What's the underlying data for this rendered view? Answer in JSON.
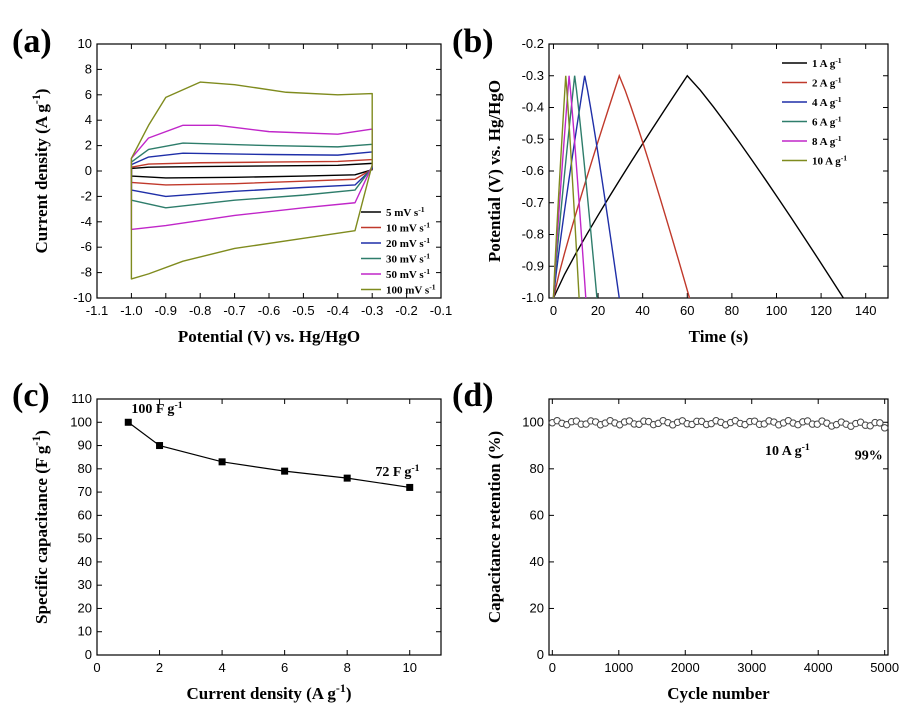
{
  "panels": [
    {
      "letter": "(a)"
    },
    {
      "letter": "(b)"
    },
    {
      "letter": "(c)"
    },
    {
      "letter": "(d)"
    }
  ],
  "chart_data": [
    {
      "type": "line",
      "xlabel": "Potential (V) vs. Hg/HgO",
      "ylabel": "Current density (A g-1)",
      "xlim": [
        -1.1,
        -0.1
      ],
      "ylim": [
        -10,
        10
      ],
      "xticks": [
        "-1.1",
        "-1.0",
        "-0.9",
        "-0.8",
        "-0.7",
        "-0.6",
        "-0.5",
        "-0.4",
        "-0.3",
        "-0.2",
        "-0.1"
      ],
      "yticks": [
        "-10",
        "-8",
        "-6",
        "-4",
        "-2",
        "0",
        "2",
        "4",
        "6",
        "8",
        "10"
      ],
      "legend_position": "lower-right",
      "series": [
        {
          "name": "5 mV s-1",
          "color": "#000000",
          "upper": [
            [
              -1.0,
              0.2
            ],
            [
              -0.95,
              0.3
            ],
            [
              -0.8,
              0.35
            ],
            [
              -0.6,
              0.4
            ],
            [
              -0.4,
              0.45
            ],
            [
              -0.3,
              0.6
            ]
          ],
          "lower": [
            [
              -1.0,
              -0.4
            ],
            [
              -0.9,
              -0.55
            ],
            [
              -0.7,
              -0.5
            ],
            [
              -0.5,
              -0.4
            ],
            [
              -0.35,
              -0.3
            ],
            [
              -0.3,
              0.1
            ]
          ]
        },
        {
          "name": "10 mV s-1",
          "color": "#c0392b",
          "upper": [
            [
              -1.0,
              0.3
            ],
            [
              -0.95,
              0.55
            ],
            [
              -0.8,
              0.65
            ],
            [
              -0.6,
              0.7
            ],
            [
              -0.4,
              0.75
            ],
            [
              -0.3,
              0.9
            ]
          ],
          "lower": [
            [
              -1.0,
              -0.9
            ],
            [
              -0.9,
              -1.1
            ],
            [
              -0.7,
              -1.0
            ],
            [
              -0.5,
              -0.8
            ],
            [
              -0.35,
              -0.65
            ],
            [
              -0.3,
              0.15
            ]
          ]
        },
        {
          "name": "20 mV s-1",
          "color": "#1f2fa8",
          "upper": [
            [
              -1.0,
              0.5
            ],
            [
              -0.95,
              1.1
            ],
            [
              -0.85,
              1.4
            ],
            [
              -0.6,
              1.3
            ],
            [
              -0.4,
              1.25
            ],
            [
              -0.3,
              1.5
            ]
          ],
          "lower": [
            [
              -1.0,
              -1.5
            ],
            [
              -0.9,
              -2.0
            ],
            [
              -0.7,
              -1.6
            ],
            [
              -0.5,
              -1.3
            ],
            [
              -0.35,
              -1.1
            ],
            [
              -0.3,
              0.2
            ]
          ]
        },
        {
          "name": "30 mV s-1",
          "color": "#2e7d6b",
          "upper": [
            [
              -1.0,
              0.7
            ],
            [
              -0.95,
              1.7
            ],
            [
              -0.85,
              2.2
            ],
            [
              -0.6,
              2.0
            ],
            [
              -0.4,
              1.9
            ],
            [
              -0.3,
              2.1
            ]
          ],
          "lower": [
            [
              -1.0,
              -2.3
            ],
            [
              -0.9,
              -2.9
            ],
            [
              -0.7,
              -2.3
            ],
            [
              -0.5,
              -1.9
            ],
            [
              -0.35,
              -1.5
            ],
            [
              -0.3,
              0.3
            ]
          ]
        },
        {
          "name": "50 mV s-1",
          "color": "#c026c9",
          "upper": [
            [
              -1.0,
              1.0
            ],
            [
              -0.95,
              2.6
            ],
            [
              -0.85,
              3.6
            ],
            [
              -0.75,
              3.6
            ],
            [
              -0.6,
              3.1
            ],
            [
              -0.4,
              2.9
            ],
            [
              -0.3,
              3.3
            ]
          ],
          "lower": [
            [
              -1.0,
              -4.6
            ],
            [
              -0.9,
              -4.3
            ],
            [
              -0.7,
              -3.5
            ],
            [
              -0.5,
              -2.9
            ],
            [
              -0.35,
              -2.5
            ],
            [
              -0.3,
              0.4
            ]
          ]
        },
        {
          "name": "100 mV s-1",
          "color": "#7f8b1e",
          "upper": [
            [
              -1.0,
              1.0
            ],
            [
              -0.95,
              3.6
            ],
            [
              -0.9,
              5.8
            ],
            [
              -0.8,
              7.0
            ],
            [
              -0.7,
              6.8
            ],
            [
              -0.55,
              6.2
            ],
            [
              -0.4,
              6.0
            ],
            [
              -0.3,
              6.1
            ]
          ],
          "lower": [
            [
              -1.0,
              -8.5
            ],
            [
              -0.95,
              -8.1
            ],
            [
              -0.85,
              -7.1
            ],
            [
              -0.7,
              -6.1
            ],
            [
              -0.5,
              -5.3
            ],
            [
              -0.35,
              -4.7
            ],
            [
              -0.3,
              0.5
            ]
          ]
        }
      ]
    },
    {
      "type": "line",
      "xlabel": "Time (s)",
      "ylabel": "Potential (V) vs. Hg/HgO",
      "xlim": [
        -2,
        150
      ],
      "ylim": [
        -1.0,
        -0.2
      ],
      "xticks": [
        "0",
        "20",
        "40",
        "60",
        "80",
        "100",
        "120",
        "140"
      ],
      "yticks": [
        "-1.0",
        "-0.9",
        "-0.8",
        "-0.7",
        "-0.6",
        "-0.5",
        "-0.4",
        "-0.3",
        "-0.2"
      ],
      "legend_position": "top-right",
      "series": [
        {
          "name": "1 A g-1",
          "color": "#000000",
          "charge_end": 60,
          "discharge_end": 130
        },
        {
          "name": "2 A g-1",
          "color": "#c0392b",
          "charge_end": 29.5,
          "discharge_end": 61
        },
        {
          "name": "4 A g-1",
          "color": "#1f2fa8",
          "charge_end": 14,
          "discharge_end": 29.5
        },
        {
          "name": "6 A g-1",
          "color": "#2e7d6b",
          "charge_end": 9.5,
          "discharge_end": 19.5
        },
        {
          "name": "8 A g-1",
          "color": "#c026c9",
          "charge_end": 7,
          "discharge_end": 14.5
        },
        {
          "name": "10 A g-1",
          "color": "#7f8b1e",
          "charge_end": 5.5,
          "discharge_end": 11.5
        }
      ]
    },
    {
      "type": "line",
      "xlabel": "Current density (A g-1)",
      "ylabel": "Specific capacitance (F g-1)",
      "xlim": [
        0,
        11
      ],
      "ylim": [
        0,
        110
      ],
      "xticks": [
        "0",
        "2",
        "4",
        "6",
        "8",
        "10"
      ],
      "yticks": [
        "0",
        "10",
        "20",
        "30",
        "40",
        "50",
        "60",
        "70",
        "80",
        "90",
        "100",
        "110"
      ],
      "x": [
        1,
        2,
        4,
        6,
        8,
        10
      ],
      "y": [
        100,
        90,
        83,
        79,
        76,
        72
      ],
      "annotations": [
        {
          "text": "100 F g-1",
          "x": 1.1,
          "y": 104
        },
        {
          "text": "72 F g-1",
          "x": 8.9,
          "y": 77
        }
      ]
    },
    {
      "type": "scatter",
      "xlabel": "Cycle number",
      "ylabel": "Capacitance retention (%)",
      "xlim": [
        -50,
        5050
      ],
      "ylim": [
        0,
        110
      ],
      "xticks": [
        "0",
        "1000",
        "2000",
        "3000",
        "4000",
        "5000"
      ],
      "yticks": [
        "0",
        "20",
        "40",
        "60",
        "80",
        "100"
      ],
      "series": [
        {
          "name": "retention",
          "x_start": 0,
          "x_end": 5000,
          "count": 70,
          "mean": 99.8,
          "final": 99
        }
      ],
      "annotations": [
        {
          "text": "10 A g-1",
          "x": 3200,
          "y": 86
        },
        {
          "text": "99%",
          "x": 4550,
          "y": 84
        }
      ]
    }
  ]
}
